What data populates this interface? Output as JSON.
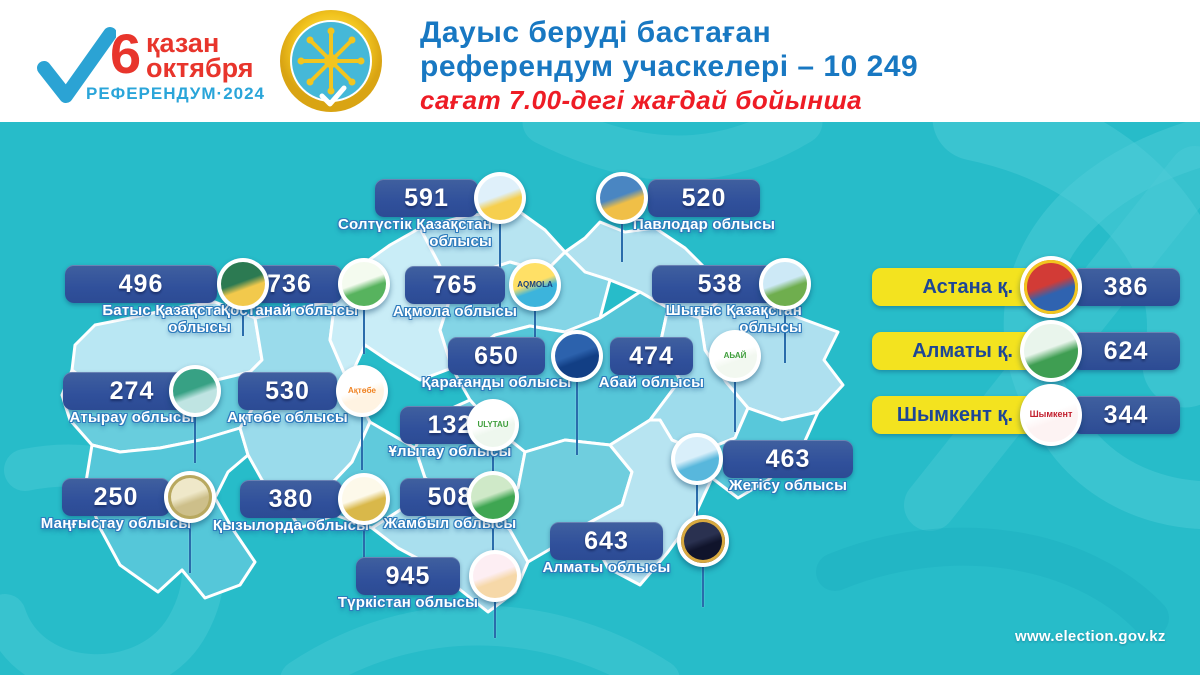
{
  "header": {
    "logo": {
      "day": "6",
      "month_kk": "қазан",
      "month_ru": "октября",
      "event": "РЕФЕРЕНДУМ·2024"
    },
    "title_line1": "Дауыс беруді бастаған",
    "title_line2": "референдум учаскелері – 10 249",
    "subtitle": "сағат 7.00-дегі жағдай бойынша"
  },
  "palette": {
    "background_teal": "#27bcc9",
    "ornament_teal": "#4ecbd7",
    "badge_navy": "#31519c",
    "city_yellow": "#f3e31f",
    "title_blue": "#1878c2",
    "alert_red": "#ee1c25",
    "logo_red": "#e8352c",
    "logo_blue": "#2aa5d9",
    "label_outline_blue": "#2f7cbd"
  },
  "regions": [
    {
      "id": "soltustik",
      "name": "Солтүстік Қазақстан\nоблысы",
      "value": "591",
      "emblem": {
        "icon": "soltustik-qazaqstan-crest-icon",
        "colors": [
          "#dff0fa",
          "#f6cf4e"
        ]
      }
    },
    {
      "id": "pavlodar",
      "name": "Павлодар облысы",
      "value": "520",
      "emblem": {
        "icon": "pavlodar-crest-icon",
        "colors": [
          "#4a86c2",
          "#f0bf47"
        ]
      }
    },
    {
      "id": "batys",
      "name": "Батыс Қазақстан\nоблысы",
      "value": "496",
      "emblem": {
        "icon": "batys-qazaqstan-crest-icon",
        "colors": [
          "#2c7a52",
          "#f2c94c"
        ]
      }
    },
    {
      "id": "kostanai",
      "name": "Қостанай облысы",
      "value": "736",
      "emblem": {
        "icon": "kostanai-crest-icon",
        "colors": [
          "#f4fbef",
          "#57b35e"
        ]
      }
    },
    {
      "id": "aqmola",
      "name": "Ақмола облысы",
      "value": "765",
      "emblem": {
        "icon": "aqmola-crest-icon",
        "colors": [
          "#ffe066",
          "#3cb4dc"
        ],
        "text": "AQMOLA",
        "text_color": "#17407f"
      }
    },
    {
      "id": "shygys",
      "name": "Шығыс Қазақстан\nоблысы",
      "value": "538",
      "emblem": {
        "icon": "shygys-qazaqstan-crest-icon",
        "colors": [
          "#cde9f6",
          "#6fae4e"
        ]
      }
    },
    {
      "id": "karagandy",
      "name": "Қарағанды облысы",
      "value": "650",
      "emblem": {
        "icon": "karagandy-crest-icon",
        "colors": [
          "#2c62ad",
          "#123f85"
        ]
      }
    },
    {
      "id": "abai",
      "name": "Абай облысы",
      "value": "474",
      "emblem": {
        "icon": "abai-crest-icon",
        "colors": [
          "#ffffff",
          "#f2f8f0"
        ],
        "text": "АЬАЙ",
        "text_color": "#3f9e3c"
      }
    },
    {
      "id": "atyrau",
      "name": "Атырау облысы",
      "value": "274",
      "emblem": {
        "icon": "atyrau-crest-icon",
        "colors": [
          "#37a184",
          "#bfe4e2"
        ]
      }
    },
    {
      "id": "aktobe",
      "name": "Ақтөбе облысы",
      "value": "530",
      "emblem": {
        "icon": "aktobe-crest-icon",
        "colors": [
          "#ffffff",
          "#fff3e2"
        ],
        "text": "Ақтөбе",
        "text_color": "#f08424"
      }
    },
    {
      "id": "ulytau",
      "name": "Ұлытау облысы",
      "value": "132",
      "emblem": {
        "icon": "ulytau-crest-icon",
        "colors": [
          "#ffffff",
          "#eef7ee"
        ],
        "text": "ULYTAU",
        "text_color": "#3f9e3c"
      }
    },
    {
      "id": "zhetysu",
      "name": "Жетісу облысы",
      "value": "463",
      "emblem": {
        "icon": "zhetysu-crest-icon",
        "colors": [
          "#d9effa",
          "#58b7dc"
        ]
      }
    },
    {
      "id": "mangystau",
      "name": "Маңғыстау облысы",
      "value": "250",
      "emblem": {
        "icon": "mangystau-crest-icon",
        "colors": [
          "#efe8c9",
          "#cdbf8a"
        ],
        "ring": "#b8a85f"
      }
    },
    {
      "id": "kyzylorda",
      "name": "Қызылорда облысы",
      "value": "380",
      "emblem": {
        "icon": "kyzylorda-crest-icon",
        "colors": [
          "#fdf9ea",
          "#d9b84a"
        ]
      }
    },
    {
      "id": "zhambyl",
      "name": "Жамбыл облысы",
      "value": "508",
      "emblem": {
        "icon": "zhambyl-crest-icon",
        "colors": [
          "#cfe9c8",
          "#3fa652"
        ]
      }
    },
    {
      "id": "almaty_obl",
      "name": "Алматы облысы",
      "value": "643",
      "emblem": {
        "icon": "almaty-oblysy-crest-icon",
        "colors": [
          "#2a3150",
          "#10142b"
        ],
        "ring": "#d8a93f"
      }
    },
    {
      "id": "turkistan",
      "name": "Түркістан облысы",
      "value": "945",
      "emblem": {
        "icon": "turkistan-crest-icon",
        "colors": [
          "#fdeef3",
          "#f6d8a8"
        ]
      }
    }
  ],
  "cities": [
    {
      "id": "astana",
      "name": "Астана қ.",
      "value": "386",
      "emblem": {
        "icon": "astana-crest-icon",
        "colors": [
          "#d23b36",
          "#2f63b0"
        ],
        "ring": "#f2c51f"
      }
    },
    {
      "id": "almaty_city",
      "name": "Алматы қ.",
      "value": "624",
      "emblem": {
        "icon": "almaty-city-crest-icon",
        "colors": [
          "#e9f5ec",
          "#3f9e52"
        ]
      }
    },
    {
      "id": "shymkent",
      "name": "Шымкент қ.",
      "value": "344",
      "emblem": {
        "icon": "shymkent-crest-icon",
        "colors": [
          "#ffffff",
          "#fdf3f3"
        ],
        "text": "Шымкент",
        "text_color": "#c21f2e"
      }
    }
  ],
  "footer": {
    "url": "www.election.gov.kz"
  }
}
